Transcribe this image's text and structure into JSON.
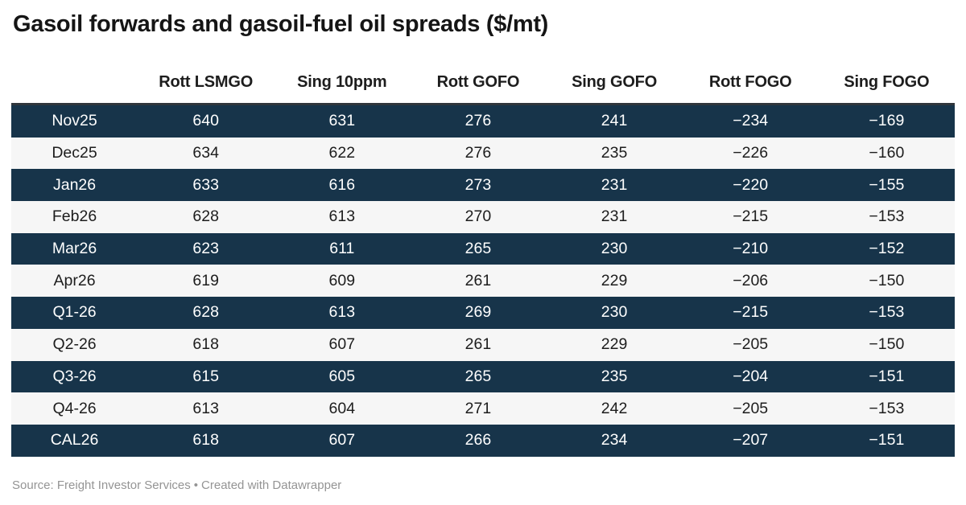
{
  "title": "Gasoil forwards and gasoil-fuel oil spreads ($/mt)",
  "footer": {
    "source": "Source: Freight Investor Services",
    "separator": "•",
    "credit": "Created with Datawrapper"
  },
  "colors": {
    "dark_row_bg": "#17344a",
    "dark_row_text": "#ffffff",
    "light_row_bg": "#f6f6f6",
    "light_row_text": "#1d1d1d",
    "header_text": "#1d1d1d",
    "title_text": "#151515",
    "top_border": "#30363c",
    "footer_text": "#949494"
  },
  "chart_data": {
    "type": "table",
    "title": "Gasoil forwards and gasoil-fuel oil spreads ($/mt)",
    "columns": [
      "",
      "Rott LSMGO",
      "Sing 10ppm",
      "Rott GOFO",
      "Sing GOFO",
      "Rott FOGO",
      "Sing FOGO"
    ],
    "rows": [
      {
        "label": "Nov25",
        "values": [
          640,
          631,
          276,
          241,
          -234,
          -169
        ]
      },
      {
        "label": "Dec25",
        "values": [
          634,
          622,
          276,
          235,
          -226,
          -160
        ]
      },
      {
        "label": "Jan26",
        "values": [
          633,
          616,
          273,
          231,
          -220,
          -155
        ]
      },
      {
        "label": "Feb26",
        "values": [
          628,
          613,
          270,
          231,
          -215,
          -153
        ]
      },
      {
        "label": "Mar26",
        "values": [
          623,
          611,
          265,
          230,
          -210,
          -152
        ]
      },
      {
        "label": "Apr26",
        "values": [
          619,
          609,
          261,
          229,
          -206,
          -150
        ]
      },
      {
        "label": "Q1-26",
        "values": [
          628,
          613,
          269,
          230,
          -215,
          -153
        ]
      },
      {
        "label": "Q2-26",
        "values": [
          618,
          607,
          261,
          229,
          -205,
          -150
        ]
      },
      {
        "label": "Q3-26",
        "values": [
          615,
          605,
          265,
          235,
          -204,
          -151
        ]
      },
      {
        "label": "Q4-26",
        "values": [
          613,
          604,
          271,
          242,
          -205,
          -153
        ]
      },
      {
        "label": "CAL26",
        "values": [
          618,
          607,
          266,
          234,
          -207,
          -151
        ]
      }
    ],
    "layout_hints": {
      "row_striping": "alternating: first row dark navy with white text, next light gray with dark text",
      "value_alignment": "center",
      "negative_sign": "unicode minus U+2212"
    }
  }
}
